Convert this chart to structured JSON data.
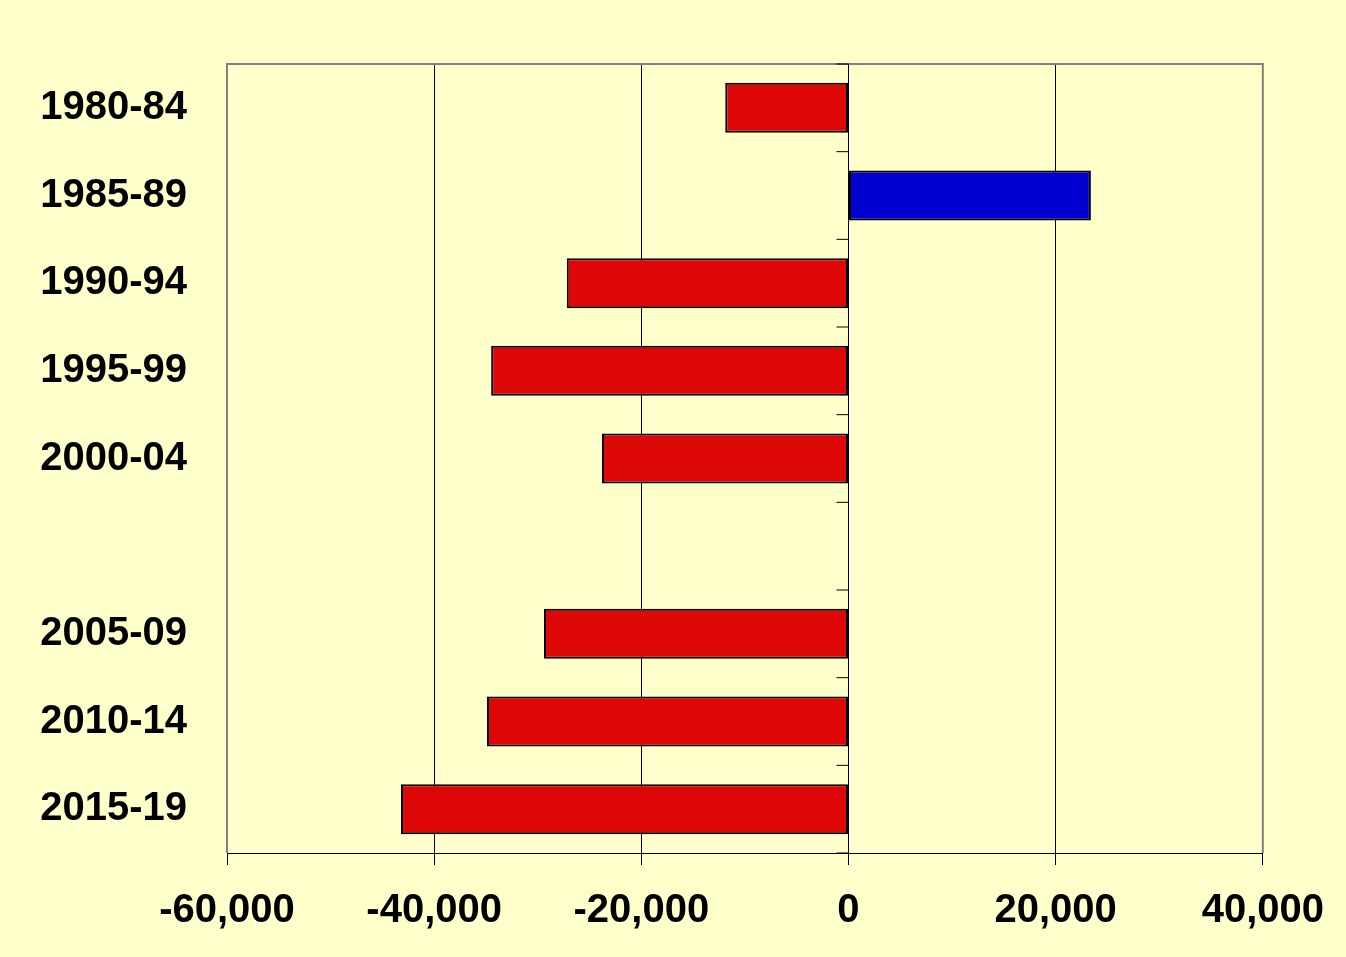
{
  "chart_data": {
    "type": "bar",
    "orientation": "horizontal",
    "categories": [
      "1980-84",
      "1985-89",
      "1990-94",
      "1995-99",
      "2000-04",
      null,
      "2005-09",
      "2010-14",
      "2015-19"
    ],
    "values": [
      -11900,
      23400,
      -27200,
      -34500,
      -23800,
      null,
      -29400,
      -34900,
      -43200
    ],
    "colors": [
      "#dd0707",
      "#0000d0",
      "#dd0707",
      "#dd0707",
      "#dd0707",
      "#dd0707",
      "#dd0707",
      "#dd0707",
      "#dd0707"
    ],
    "xlim": [
      -60000,
      40000
    ],
    "xticks": [
      {
        "value": -60000,
        "label": "-60,000"
      },
      {
        "value": -40000,
        "label": "-40,000"
      },
      {
        "value": -20000,
        "label": "-20,000"
      },
      0,
      {
        "value": 20000,
        "label": "20,000"
      },
      {
        "value": 40000,
        "label": "40,000"
      }
    ],
    "grid": "x",
    "legend": false
  }
}
